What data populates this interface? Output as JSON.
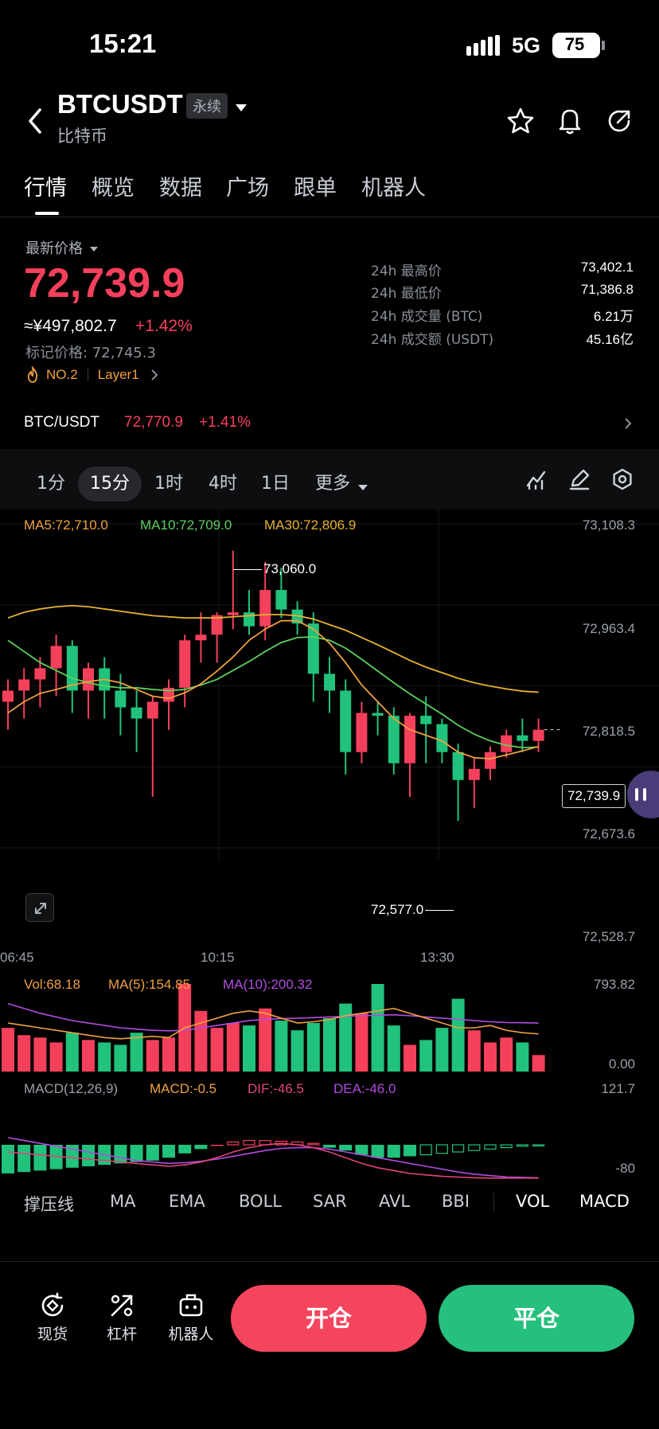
{
  "status_bar": {
    "time": "15:21",
    "network": "5G",
    "battery": "75"
  },
  "header": {
    "symbol": "BTCUSDT",
    "contract_badge": "永续",
    "subtitle": "比特币"
  },
  "tabs": [
    "行情",
    "概览",
    "数据",
    "广场",
    "跟单",
    "机器人"
  ],
  "price": {
    "label": "最新价格",
    "last": "72,739.9",
    "cny": "≈¥497,802.7",
    "change": "+1.42%",
    "mark": "标记价格: 72,745.3",
    "rank": "NO.2",
    "sector": "Layer1"
  },
  "stats": [
    {
      "label": "24h 最高价",
      "value": "73,402.1"
    },
    {
      "label": "24h 最低价",
      "value": "71,386.8"
    },
    {
      "label": "24h 成交量 (BTC)",
      "value": "6.21万"
    },
    {
      "label": "24h 成交额 (USDT)",
      "value": "45.16亿"
    }
  ],
  "spot": {
    "pair": "BTC/USDT",
    "price": "72,770.9",
    "change": "+1.41%"
  },
  "timeframes": [
    "1分",
    "15分",
    "1时",
    "4时",
    "1日",
    "更多"
  ],
  "active_timeframe": "15分",
  "ma_legend": {
    "ma5": "MA5:72,710.0",
    "ma10": "MA10:72,709.0",
    "ma30": "MA30:72,806.9"
  },
  "price_axis": [
    "73,108.3",
    "72,963.4",
    "72,818.5",
    "72,673.6",
    "72,528.7"
  ],
  "time_axis": [
    "06:45",
    "10:15",
    "13:30"
  ],
  "annotations": {
    "high": "73,060.0",
    "low": "72,577.0",
    "current": "72,739.9"
  },
  "vol_legend": {
    "vol": "Vol:68.18",
    "ma5": "MA(5):154.85",
    "ma10": "MA(10):200.32"
  },
  "vol_axis": [
    "793.82",
    "0.00"
  ],
  "macd_legend": {
    "name": "MACD(12,26,9)",
    "macd": "MACD:-0.5",
    "dif": "DIF:-46.5",
    "dea": "DEA:-46.0"
  },
  "macd_axis": [
    "121.7",
    "-80"
  ],
  "indicators": [
    "撑压线",
    "MA",
    "EMA",
    "BOLL",
    "SAR",
    "AVL",
    "BBI",
    "VOL",
    "MACD"
  ],
  "bottom_bar": {
    "spot": "现货",
    "leverage": "杠杆",
    "robot": "机器人",
    "open": "开仓",
    "close": "平仓"
  },
  "colors": {
    "up": "#f5405c",
    "down": "#21c27b",
    "ma5": "#f0a040",
    "ma10": "#5ccf5c",
    "ma30": "#e8b030",
    "dif": "#e0457a",
    "dea": "#b04de0",
    "open_btn": "#f5455e",
    "close_btn": "#25c07d"
  },
  "chart_data": [
    {
      "type": "candlestick",
      "title": "",
      "ylim": [
        72528.7,
        73108.3
      ],
      "candles": [
        [
          72790,
          72830,
          72740,
          72810
        ],
        [
          72810,
          72850,
          72760,
          72830
        ],
        [
          72830,
          72870,
          72780,
          72850
        ],
        [
          72850,
          72910,
          72800,
          72890
        ],
        [
          72890,
          72900,
          72770,
          72810
        ],
        [
          72810,
          72860,
          72760,
          72850
        ],
        [
          72850,
          72870,
          72760,
          72810
        ],
        [
          72810,
          72840,
          72730,
          72780
        ],
        [
          72780,
          72810,
          72700,
          72760
        ],
        [
          72760,
          72800,
          72620,
          72790
        ],
        [
          72790,
          72830,
          72740,
          72815
        ],
        [
          72815,
          72910,
          72780,
          72900
        ],
        [
          72900,
          72950,
          72860,
          72910
        ],
        [
          72910,
          72950,
          72860,
          72945
        ],
        [
          72945,
          73060,
          72920,
          72950
        ],
        [
          72950,
          72990,
          72910,
          72925
        ],
        [
          72925,
          73040,
          72900,
          72990
        ],
        [
          72990,
          73030,
          72940,
          72955
        ],
        [
          72955,
          72970,
          72910,
          72930
        ],
        [
          72930,
          72950,
          72790,
          72840
        ],
        [
          72840,
          72870,
          72770,
          72810
        ],
        [
          72810,
          72830,
          72660,
          72700
        ],
        [
          72700,
          72790,
          72680,
          72770
        ],
        [
          72770,
          72790,
          72730,
          72765
        ],
        [
          72765,
          72780,
          72660,
          72680
        ],
        [
          72680,
          72770,
          72620,
          72765
        ],
        [
          72765,
          72800,
          72680,
          72750
        ],
        [
          72750,
          72760,
          72680,
          72700
        ],
        [
          72700,
          72715,
          72577,
          72650
        ],
        [
          72650,
          72690,
          72600,
          72670
        ],
        [
          72670,
          72710,
          72650,
          72700
        ],
        [
          72700,
          72740,
          72690,
          72730
        ],
        [
          72730,
          72760,
          72700,
          72720
        ],
        [
          72720,
          72760,
          72700,
          72740
        ]
      ],
      "ma5": [
        72770,
        72790,
        72805,
        72812,
        72820,
        72826,
        72830,
        72824,
        72812,
        72800,
        72796,
        72806,
        72822,
        72845,
        72870,
        72900,
        72920,
        72935,
        72935,
        72920,
        72895,
        72860,
        72820,
        72790,
        72760,
        72740,
        72730,
        72720,
        72700,
        72690,
        72688,
        72695,
        72702,
        72710
      ],
      "ma10": [
        72900,
        72880,
        72860,
        72846,
        72832,
        72824,
        72818,
        72815,
        72815,
        72812,
        72810,
        72812,
        72820,
        72830,
        72846,
        72862,
        72880,
        72896,
        72905,
        72906,
        72900,
        72886,
        72866,
        72845,
        72824,
        72804,
        72786,
        72768,
        72748,
        72732,
        72720,
        72712,
        72708,
        72709
      ],
      "ma30": [
        72940,
        72950,
        72956,
        72960,
        72962,
        72960,
        72956,
        72952,
        72948,
        72944,
        72942,
        72940,
        72940,
        72940,
        72942,
        72944,
        72946,
        72946,
        72944,
        72938,
        72928,
        72918,
        72905,
        72892,
        72878,
        72864,
        72852,
        72842,
        72832,
        72824,
        72818,
        72813,
        72809,
        72807
      ]
    },
    {
      "type": "bar",
      "title": "Vol",
      "ylim": [
        0,
        793.82
      ],
      "values": [
        180,
        150,
        140,
        120,
        160,
        130,
        120,
        110,
        160,
        130,
        140,
        370,
        250,
        180,
        200,
        190,
        260,
        210,
        170,
        200,
        220,
        280,
        240,
        420,
        190,
        110,
        130,
        180,
        300,
        170,
        120,
        140,
        120,
        68
      ],
      "ma5": [
        200,
        190,
        180,
        170,
        160,
        150,
        140,
        135,
        140,
        145,
        140,
        180,
        200,
        220,
        240,
        250,
        240,
        220,
        200,
        205,
        215,
        230,
        240,
        250,
        260,
        240,
        220,
        200,
        180,
        180,
        190,
        170,
        160,
        155
      ],
      "ma10": [
        280,
        260,
        240,
        225,
        210,
        200,
        190,
        180,
        175,
        170,
        168,
        170,
        180,
        190,
        200,
        210,
        215,
        218,
        220,
        222,
        225,
        228,
        230,
        232,
        234,
        230,
        225,
        220,
        215,
        210,
        205,
        202,
        201,
        200
      ]
    },
    {
      "type": "bar",
      "title": "MACD",
      "ylim": [
        -80,
        121.7
      ],
      "values": [
        -40,
        -38,
        -36,
        -34,
        -32,
        -30,
        -28,
        -26,
        -24,
        -22,
        -18,
        -12,
        -6,
        0,
        4,
        6,
        6,
        5,
        4,
        2,
        -4,
        -8,
        -14,
        -18,
        -18,
        -16,
        -14,
        -12,
        -10,
        -8,
        -6,
        -4,
        -2,
        -0.5
      ],
      "dif": [
        -10,
        -12,
        -14,
        -16,
        -18,
        -20,
        -22,
        -24,
        -26,
        -28,
        -30,
        -28,
        -24,
        -18,
        -10,
        -4,
        0,
        2,
        0,
        -4,
        -10,
        -18,
        -26,
        -32,
        -36,
        -40,
        -42,
        -44,
        -45,
        -46,
        -46.5,
        -46.5,
        -46.5,
        -46.5
      ],
      "dea": [
        10,
        6,
        2,
        -2,
        -6,
        -10,
        -14,
        -18,
        -22,
        -24,
        -26,
        -25,
        -23,
        -20,
        -16,
        -12,
        -8,
        -5,
        -4,
        -4,
        -6,
        -10,
        -14,
        -18,
        -22,
        -26,
        -30,
        -34,
        -38,
        -41,
        -43,
        -45,
        -45.5,
        -46
      ]
    }
  ]
}
